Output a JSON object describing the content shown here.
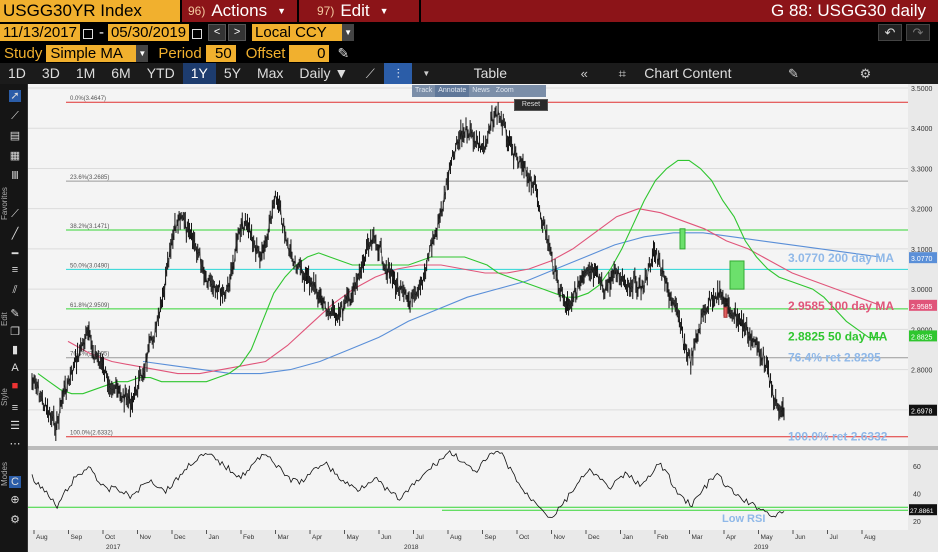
{
  "title_bar": {
    "ticker": "USGG30YR Index",
    "actions_num": "96)",
    "actions_label": "Actions",
    "edit_num": "97)",
    "edit_label": "Edit",
    "screen_title": "G 88: USGG30 daily"
  },
  "dates": {
    "start": "11/13/2017",
    "dash": "-",
    "end": "05/30/2019",
    "currency": "Local CCY"
  },
  "study": {
    "study_label": "Study",
    "study_value": "Simple MA",
    "period_label": "Period",
    "period_value": "50",
    "offset_label": "Offset",
    "offset_value": "0"
  },
  "toolbar": {
    "ranges": [
      "1D",
      "3D",
      "1M",
      "6M",
      "YTD",
      "1Y",
      "5Y",
      "Max"
    ],
    "active_range": "1Y",
    "frequency": "Daily ▼",
    "table_label": "Table",
    "chart_content_label": "Chart Content"
  },
  "side_labels": {
    "favorites": "Favorites",
    "edit": "Edit",
    "style": "Style",
    "modes": "Modes"
  },
  "overlay": {
    "items": [
      "Track",
      "Annotate",
      "News",
      "Zoom"
    ],
    "reset": "Reset"
  },
  "colors": {
    "price": "#ffffff",
    "ma50": "#2fc62f",
    "ma100": "#e0557a",
    "ma200": "#5a8fd8",
    "fib_red": "#e03030",
    "fib_green": "#34d534",
    "fib_cyan": "#2bd6d6",
    "fib_grey": "#9a9a9a",
    "annot_blue": "#8fb8e8"
  },
  "chart_data": {
    "type": "line",
    "price_axis_ticks": [
      "3.5000",
      "3.4000",
      "3.3000",
      "3.2000",
      "3.1000",
      "3.0000",
      "2.9000",
      "2.8000",
      "2.7000"
    ],
    "ylim": [
      2.62,
      3.5
    ],
    "right_tags": [
      {
        "label": "3.0770",
        "value": 3.077,
        "color": "#5a8fd8"
      },
      {
        "label": "2.9585",
        "value": 2.9585,
        "color": "#e0557a"
      },
      {
        "label": "2.8825",
        "value": 2.8825,
        "color": "#2fc62f"
      },
      {
        "label": "2.6978",
        "value": 2.6978,
        "color": "#ffffff"
      }
    ],
    "fib_levels": [
      {
        "label": "0.0%(3.4647)",
        "value": 3.4647,
        "color": "#e03030"
      },
      {
        "label": "23.6%(3.2685)",
        "value": 3.2685,
        "color": "#9a9a9a"
      },
      {
        "label": "38.2%(3.1471)",
        "value": 3.1471,
        "color": "#34d534"
      },
      {
        "label": "50.0%(3.0490)",
        "value": 3.049,
        "color": "#2bd6d6"
      },
      {
        "label": "61.8%(2.9509)",
        "value": 2.9509,
        "color": "#34d534"
      },
      {
        "label": "76.4%(2.8295)",
        "value": 2.8295,
        "color": "#9a9a9a"
      },
      {
        "label": "100.0%(2.6332)",
        "value": 2.6332,
        "color": "#e03030"
      }
    ],
    "annotations": [
      {
        "text": "3.0770 200 day MA",
        "value": 3.077,
        "color": "#8fb8e8"
      },
      {
        "text": "2.9585 100 day MA",
        "value": 2.9585,
        "color": "#e0557a"
      },
      {
        "text": "2.8825 50 day MA",
        "value": 2.8825,
        "color": "#2fc62f"
      },
      {
        "text": "76.4% ret 2.8295",
        "value": 2.8295,
        "color": "#8fb8e8"
      },
      {
        "text": "100.0% ret 2.6332",
        "value": 2.6332,
        "color": "#8fb8e8"
      }
    ],
    "x_months": [
      "Aug",
      "Sep",
      "Oct",
      "Nov",
      "Dec",
      "Jan",
      "Feb",
      "Mar",
      "Apr",
      "May",
      "Jun",
      "Jul",
      "Aug",
      "Sep",
      "Oct",
      "Nov",
      "Dec",
      "Jan",
      "Feb",
      "Mar",
      "Apr",
      "May",
      "Jun",
      "Jul",
      "Aug"
    ],
    "x_years": [
      "2017",
      "2018",
      "2019"
    ],
    "price_series": [
      2.77,
      2.75,
      2.71,
      2.68,
      2.66,
      2.74,
      2.77,
      2.82,
      2.86,
      2.89,
      2.84,
      2.82,
      2.78,
      2.76,
      2.74,
      2.73,
      2.72,
      2.76,
      2.8,
      2.86,
      2.9,
      2.97,
      3.07,
      3.15,
      3.19,
      3.14,
      3.12,
      3.08,
      3.03,
      3.02,
      3.0,
      2.99,
      3.03,
      3.12,
      3.16,
      3.15,
      3.1,
      3.08,
      3.13,
      3.23,
      3.19,
      3.11,
      3.08,
      3.05,
      3.03,
      3.02,
      2.99,
      2.96,
      2.94,
      2.94,
      2.95,
      2.98,
      3.0,
      3.05,
      3.1,
      3.12,
      3.1,
      3.05,
      3.03,
      3.0,
      2.98,
      2.97,
      2.98,
      3.03,
      3.1,
      3.14,
      3.2,
      3.28,
      3.34,
      3.38,
      3.4,
      3.38,
      3.36,
      3.35,
      3.42,
      3.44,
      3.4,
      3.35,
      3.32,
      3.3,
      3.28,
      3.25,
      3.18,
      3.12,
      3.05,
      3.0,
      2.96,
      2.98,
      3.01,
      3.03,
      3.04,
      3.03,
      3.0,
      3.02,
      3.04,
      3.03,
      3.01,
      3.02,
      3.0,
      3.03,
      3.1,
      3.06,
      3.01,
      2.97,
      2.93,
      2.86,
      2.82,
      2.88,
      2.94,
      2.97,
      2.99,
      2.98,
      2.95,
      2.94,
      2.92,
      2.9,
      2.87,
      2.85,
      2.82,
      2.75,
      2.7,
      2.69
    ],
    "ma50_series": [
      2.79,
      2.77,
      2.75,
      2.74,
      2.74,
      2.75,
      2.76,
      2.77,
      2.77,
      2.78,
      2.78,
      2.77,
      2.77,
      2.77,
      2.77,
      2.77,
      2.78,
      2.79,
      2.81,
      2.85,
      2.92,
      2.99,
      3.03,
      3.06,
      3.08,
      3.09,
      3.08,
      3.07,
      3.06,
      3.06,
      3.06,
      3.06,
      3.06,
      3.06,
      3.07,
      3.08,
      3.08,
      3.08,
      3.08,
      3.07,
      3.06,
      3.04,
      3.03,
      3.02,
      3.01,
      3.0,
      2.99,
      2.98,
      2.98,
      2.99,
      3.01,
      3.05,
      3.1,
      3.16,
      3.22,
      3.27,
      3.3,
      3.32,
      3.32,
      3.3,
      3.27,
      3.22,
      3.18,
      3.12,
      3.08,
      3.05,
      3.03,
      3.02,
      3.01,
      3.0,
      2.98,
      2.95,
      2.92,
      2.9,
      2.88,
      2.88
    ],
    "ma100_series": [
      2.87,
      2.84,
      2.82,
      2.81,
      2.8,
      2.79,
      2.79,
      2.8,
      2.81,
      2.82,
      2.86,
      2.91,
      2.96,
      3.0,
      3.03,
      3.05,
      3.06,
      3.06,
      3.05,
      3.04,
      3.04,
      3.05,
      3.07,
      3.1,
      3.14,
      3.18,
      3.2,
      3.19,
      3.17,
      3.15,
      3.12,
      3.1,
      3.07,
      3.04,
      3.02,
      3.0,
      2.98,
      2.96
    ],
    "ma200_series": [
      2.82,
      2.81,
      2.8,
      2.79,
      2.79,
      2.8,
      2.82,
      2.85,
      2.88,
      2.92,
      2.95,
      2.98,
      3.0,
      3.02,
      3.05,
      3.08,
      3.11,
      3.13,
      3.14,
      3.14,
      3.13,
      3.12,
      3.11,
      3.1,
      3.09,
      3.08
    ],
    "rsi": {
      "axis_ticks": [
        "60",
        "40",
        "20"
      ],
      "value_tag": "27.8861",
      "label": "Low RSI",
      "ylim": [
        15,
        70
      ],
      "series": [
        52,
        45,
        38,
        30,
        41,
        50,
        55,
        60,
        48,
        42,
        45,
        40,
        38,
        44,
        50,
        46,
        42,
        48,
        55,
        62,
        66,
        68,
        65,
        60,
        56,
        52,
        58,
        64,
        70,
        62,
        55,
        50,
        48,
        52,
        58,
        63,
        56,
        50,
        46,
        43,
        47,
        52,
        45,
        40,
        36,
        42,
        48,
        54,
        60,
        65,
        70,
        66,
        60,
        55,
        62,
        68,
        70,
        60,
        50,
        40,
        35,
        30,
        22,
        28,
        36,
        45,
        52,
        57,
        50,
        44,
        48,
        54,
        50,
        46,
        52,
        62,
        55,
        42,
        36,
        32,
        40,
        48,
        54,
        46,
        40,
        36,
        32,
        30,
        26,
        24,
        27
      ]
    }
  }
}
